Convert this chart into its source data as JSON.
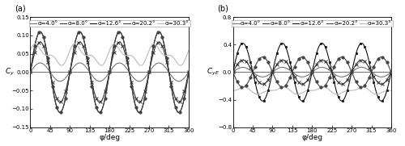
{
  "title_a": "(a)",
  "title_b": "(b)",
  "xlabel": "φ/deg",
  "xlim": [
    0,
    360
  ],
  "xticks": [
    0,
    45,
    90,
    135,
    180,
    225,
    270,
    315,
    360
  ],
  "ylim_a": [
    -0.15,
    0.15
  ],
  "yticks_a": [
    -0.15,
    -0.1,
    -0.05,
    0,
    0.05,
    0.1,
    0.15
  ],
  "ylim_b": [
    -0.8,
    0.8
  ],
  "yticks_b": [
    -0.8,
    -0.4,
    0,
    0.4,
    0.8
  ],
  "series": [
    {
      "label": "α=4.0°",
      "color": "#777777",
      "lw": 0.8,
      "marker": null,
      "ms": 2.5,
      "mew": 0.7
    },
    {
      "label": "α=8.0°",
      "color": "#333333",
      "lw": 0.8,
      "marker": "x",
      "ms": 2.5,
      "mew": 0.7
    },
    {
      "label": "α=12.6°",
      "color": "#111111",
      "lw": 0.8,
      "marker": "s",
      "ms": 2.0,
      "mew": 0.5
    },
    {
      "label": "α=20.2°",
      "color": "#444444",
      "lw": 0.8,
      "marker": "o",
      "ms": 2.5,
      "mew": 0.5
    },
    {
      "label": "α=30.3°",
      "color": "#bbbbbb",
      "lw": 0.8,
      "marker": null,
      "ms": 2.5,
      "mew": 0.7
    }
  ],
  "legend_fontsize": 5.0,
  "tick_fontsize": 5.0,
  "label_fontsize": 6.5,
  "panel_label_fontsize": 7.0
}
